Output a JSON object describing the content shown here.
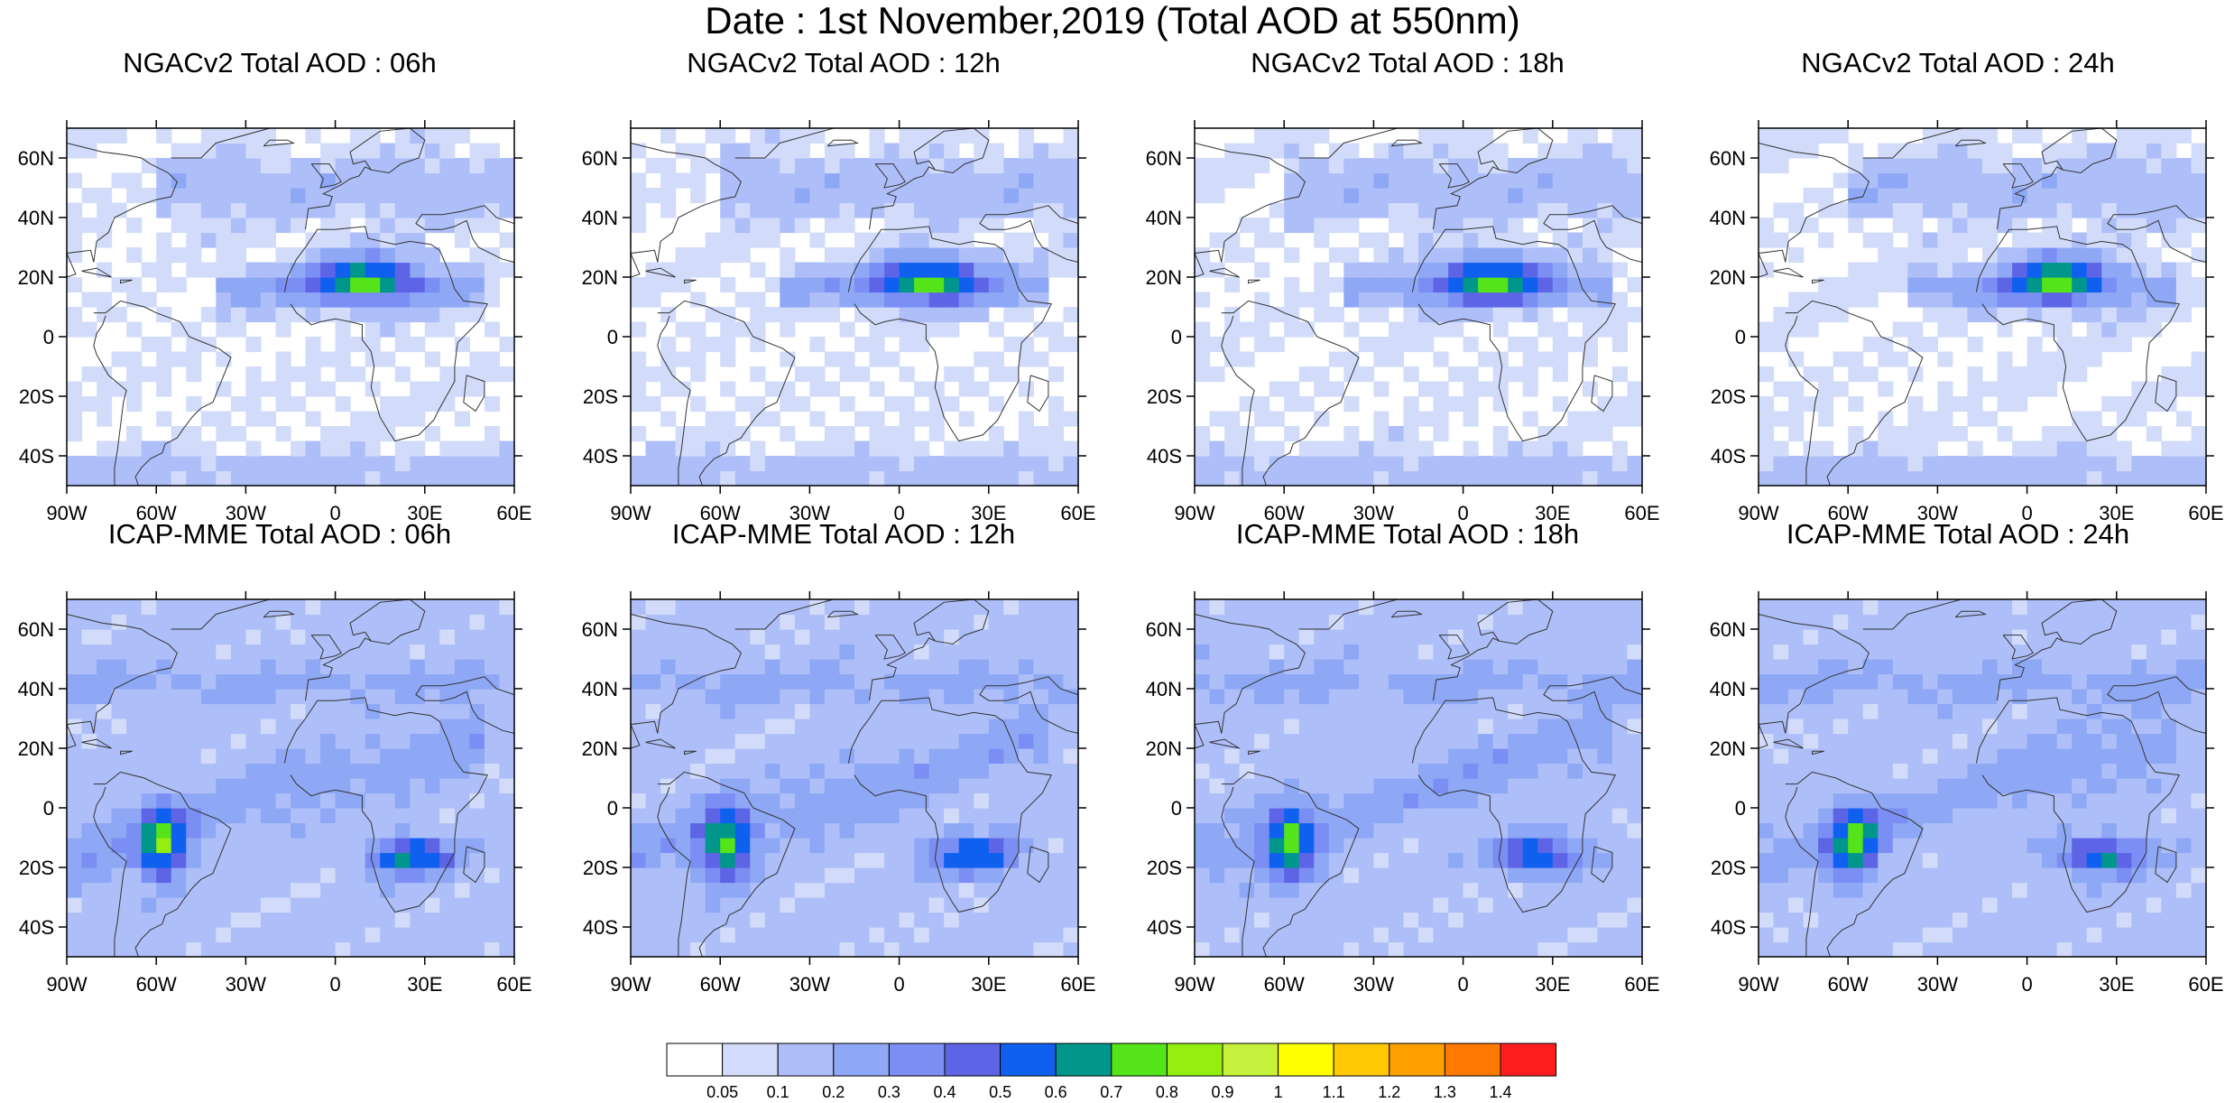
{
  "title": "Date : 1st November,2019 (Total AOD at 550nm)",
  "map": {
    "lon_range": [
      -90,
      60
    ],
    "lat_range": [
      -50,
      70
    ],
    "x_ticks": [
      {
        "value": -90,
        "label": "90W"
      },
      {
        "value": -60,
        "label": "60W"
      },
      {
        "value": -30,
        "label": "30W"
      },
      {
        "value": 0,
        "label": "0"
      },
      {
        "value": 30,
        "label": "30E"
      },
      {
        "value": 60,
        "label": "60E"
      }
    ],
    "y_ticks": [
      {
        "value": 60,
        "label": "60N"
      },
      {
        "value": 40,
        "label": "40N"
      },
      {
        "value": 20,
        "label": "20N"
      },
      {
        "value": 0,
        "label": "0"
      },
      {
        "value": -20,
        "label": "20S"
      },
      {
        "value": -40,
        "label": "40S"
      }
    ]
  },
  "panels": [
    {
      "title": "NGACv2 Total AOD : 06h",
      "model": "NGACv2"
    },
    {
      "title": "NGACv2 Total AOD : 12h",
      "model": "NGACv2"
    },
    {
      "title": "NGACv2 Total AOD : 18h",
      "model": "NGACv2"
    },
    {
      "title": "NGACv2 Total AOD : 24h",
      "model": "NGACv2"
    },
    {
      "title": "ICAP-MME Total AOD : 06h",
      "model": "ICAP"
    },
    {
      "title": "ICAP-MME Total AOD : 12h",
      "model": "ICAP"
    },
    {
      "title": "ICAP-MME Total AOD : 18h",
      "model": "ICAP"
    },
    {
      "title": "ICAP-MME Total AOD : 24h",
      "model": "ICAP"
    }
  ],
  "colorbar": {
    "labels": [
      "0.05",
      "0.1",
      "0.2",
      "0.3",
      "0.4",
      "0.5",
      "0.6",
      "0.7",
      "0.8",
      "0.9",
      "1",
      "1.1",
      "1.2",
      "1.3",
      "1.4"
    ],
    "colors": [
      "#ffffff",
      "#d2dcfa",
      "#aebef8",
      "#8ea8f5",
      "#7b8ef4",
      "#5d65e6",
      "#1060f0",
      "#00968c",
      "#55e41a",
      "#94ee10",
      "#c5f03c",
      "#ffff00",
      "#ffc800",
      "#ffa000",
      "#ff7800",
      "#ff1e1e"
    ]
  },
  "colors": {
    "land_outline": "#333333",
    "background": "#ffffff"
  }
}
